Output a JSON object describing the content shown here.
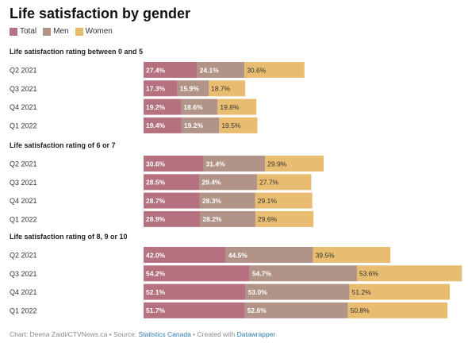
{
  "chart_data": {
    "type": "bar",
    "title": "Life satisfaction by gender",
    "categories": [
      "Q2 2021",
      "Q3 2021",
      "Q4 2021",
      "Q1 2022"
    ],
    "legend": [
      {
        "name": "Total",
        "color": "#b5717f"
      },
      {
        "name": "Men",
        "color": "#b19388"
      },
      {
        "name": "Women",
        "color": "#e8bd72"
      }
    ],
    "groups": [
      {
        "heading": "Life satisfaction rating between 0 and 5",
        "rows": [
          {
            "category": "Q2 2021",
            "values": [
              27.4,
              24.1,
              30.6
            ],
            "labels": [
              "27.4%",
              "24.1%",
              "30.6%"
            ]
          },
          {
            "category": "Q3 2021",
            "values": [
              17.3,
              15.9,
              18.7
            ],
            "labels": [
              "17.3%",
              "15.9%",
              "18.7%"
            ]
          },
          {
            "category": "Q4 2021",
            "values": [
              19.2,
              18.6,
              19.8
            ],
            "labels": [
              "19.2%",
              "18.6%",
              "19.8%"
            ]
          },
          {
            "category": "Q1 2022",
            "values": [
              19.4,
              19.2,
              19.5
            ],
            "labels": [
              "19.4%",
              "19.2%",
              "19.5%"
            ]
          }
        ]
      },
      {
        "heading": "Life satisfaction rating of 6 or 7",
        "rows": [
          {
            "category": "Q2 2021",
            "values": [
              30.6,
              31.4,
              29.9
            ],
            "labels": [
              "30.6%",
              "31.4%",
              "29.9%"
            ]
          },
          {
            "category": "Q3 2021",
            "values": [
              28.5,
              29.4,
              27.7
            ],
            "labels": [
              "28.5%",
              "29.4%",
              "27.7%"
            ]
          },
          {
            "category": "Q4 2021",
            "values": [
              28.7,
              28.3,
              29.1
            ],
            "labels": [
              "28.7%",
              "28.3%",
              "29.1%"
            ]
          },
          {
            "category": "Q1 2022",
            "values": [
              28.9,
              28.2,
              29.6
            ],
            "labels": [
              "28.9%",
              "28.2%",
              "29.6%"
            ]
          }
        ]
      },
      {
        "heading": "Life satisfaction rating of 8, 9 or 10",
        "rows": [
          {
            "category": "Q2 2021",
            "values": [
              42.0,
              44.5,
              39.5
            ],
            "labels": [
              "42.0%",
              "44.5%",
              "39.5%"
            ]
          },
          {
            "category": "Q3 2021",
            "values": [
              54.2,
              54.7,
              53.6
            ],
            "labels": [
              "54.2%",
              "54.7%",
              "53.6%"
            ]
          },
          {
            "category": "Q4 2021",
            "values": [
              52.1,
              53.0,
              51.2
            ],
            "labels": [
              "52.1%",
              "53.0%",
              "51.2%"
            ]
          },
          {
            "category": "Q1 2022",
            "values": [
              51.7,
              52.6,
              50.8
            ],
            "labels": [
              "51.7%",
              "52.6%",
              "50.8%"
            ]
          }
        ]
      }
    ]
  },
  "footer": {
    "prefix": "Chart: Deena Zaidi/CTVNews.ca • Source: ",
    "source": "Statistics Canada",
    "middle": " • Created with ",
    "tool": "Datawrapper"
  }
}
